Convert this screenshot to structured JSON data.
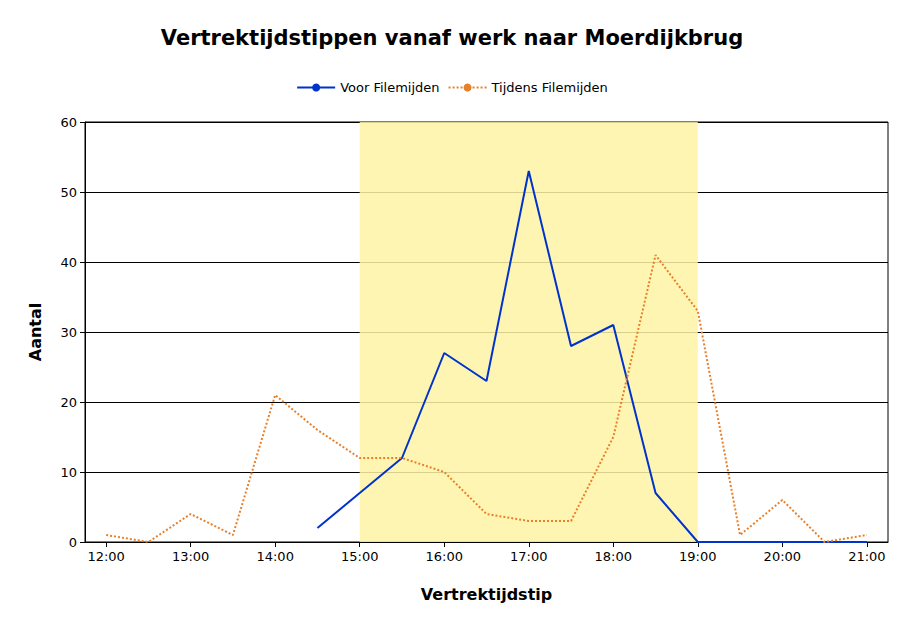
{
  "chart_data": {
    "type": "line",
    "title": "Vertrektijdstippen vanaf werk naar Moerdijkbrug",
    "x_label": "Vertrektijdstip",
    "y_label": "Aantal",
    "x": [
      12,
      12.5,
      13,
      13.5,
      14,
      14.5,
      15,
      15.5,
      16,
      16.5,
      17,
      17.5,
      18,
      18.5,
      19,
      19.5,
      20,
      20.5,
      21
    ],
    "series": [
      {
        "name": "Voor Filemijden",
        "color": "#0033cc",
        "line_style": "solid",
        "marker": "none",
        "values": [
          null,
          null,
          null,
          null,
          null,
          2,
          7,
          12,
          27,
          23,
          53,
          28,
          31,
          7,
          0,
          0,
          0,
          0,
          0
        ]
      },
      {
        "name": "Tijdens Filemijden",
        "color": "#e8802a",
        "line_style": "dotted",
        "marker": "none",
        "values": [
          1,
          0,
          4,
          1,
          21,
          16,
          12,
          12,
          10,
          4,
          3,
          3,
          15,
          41,
          33,
          1,
          6,
          0,
          1
        ]
      }
    ],
    "xlim": [
      11.75,
      21.25
    ],
    "xticks": [
      {
        "value": 12,
        "label": "12:00"
      },
      {
        "value": 13,
        "label": "13:00"
      },
      {
        "value": 14,
        "label": "14:00"
      },
      {
        "value": 15,
        "label": "15:00"
      },
      {
        "value": 16,
        "label": "16:00"
      },
      {
        "value": 17,
        "label": "17:00"
      },
      {
        "value": 18,
        "label": "18:00"
      },
      {
        "value": 19,
        "label": "19:00"
      },
      {
        "value": 20,
        "label": "20:00"
      },
      {
        "value": 21,
        "label": "21:00"
      }
    ],
    "ylim": [
      0,
      60
    ],
    "yticks": [
      0,
      10,
      20,
      30,
      40,
      50,
      60
    ],
    "shaded": {
      "from": 15,
      "to": 19,
      "color": "#fff3a6"
    },
    "grid": true,
    "legend": "top"
  }
}
